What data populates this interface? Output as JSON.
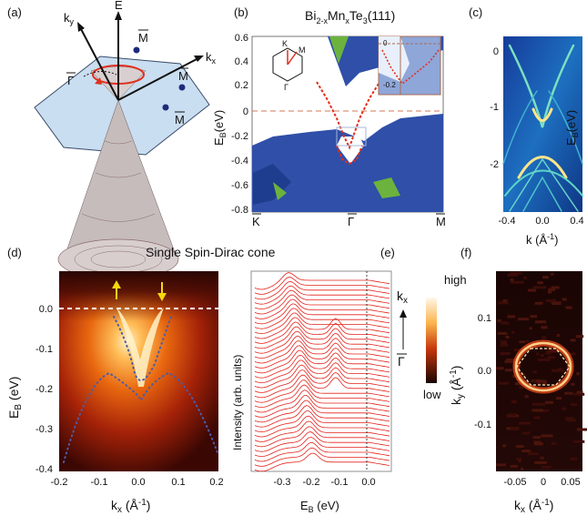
{
  "panels": {
    "a": {
      "label": "(a)",
      "axis_E": "E",
      "axis_ky": "k",
      "axis_ky_sub": "y",
      "axis_kx": "k",
      "axis_kx_sub": "x",
      "points": [
        "Γ",
        "M",
        "M",
        "M"
      ]
    },
    "b": {
      "label": "(b)",
      "title_parts": [
        "Bi",
        "2-x",
        "Mn",
        "x",
        "Te",
        "3",
        "(111)"
      ],
      "ylabel": "E",
      "ylabel_sub": "B",
      "ylabel_unit": "(eV)",
      "yticks": [
        "0.6",
        "0.4",
        "0.2",
        "0",
        "-0.2",
        "-0.4",
        "-0.6",
        "-0.8"
      ],
      "xticks": [
        "K",
        "Γ",
        "M"
      ],
      "inset_bz": [
        "K",
        "M",
        "Γ"
      ],
      "inset_zoom_ticks": [
        "0",
        "-0.2"
      ]
    },
    "c": {
      "label": "(c)",
      "ylabel": "E",
      "ylabel_sub": "B",
      "ylabel_unit": "(eV)",
      "yticks": [
        "0",
        "-1",
        "-2"
      ],
      "xticks": [
        "-0.4",
        "0.0",
        "0.4"
      ],
      "xlabel": "k (Å",
      "xlabel_sup": "-1",
      "xlabel_end": ")"
    },
    "d": {
      "label": "(d)",
      "title": "Single Spin-Dirac cone",
      "ylabel": "E",
      "ylabel_sub": "B",
      "ylabel_unit": " (eV)",
      "yticks": [
        "0.0",
        "-0.1",
        "-0.2",
        "-0.3",
        "-0.4"
      ],
      "xticks": [
        "-0.2",
        "-0.1",
        "0.0",
        "0.1",
        "0.2"
      ],
      "xlabel": "k",
      "xlabel_sub": "x",
      "xlabel_unit": " (Å",
      "xlabel_sup": "-1",
      "xlabel_end": ")"
    },
    "e": {
      "label": "(e)",
      "ylabel": "Intensity (arb. units)",
      "xticks": [
        "-0.3",
        "-0.2",
        "-0.1",
        "0.0"
      ],
      "xlabel": "E",
      "xlabel_sub": "B",
      "xlabel_unit": " (eV)",
      "arrow_top": "k",
      "arrow_top_sub": "x",
      "arrow_bottom": "Γ"
    },
    "f": {
      "label": "(f)",
      "ylabel": "k",
      "ylabel_sub": "y",
      "ylabel_unit": " (Å",
      "ylabel_sup": "-1",
      "ylabel_end": ")",
      "yticks": [
        "0.1",
        "0.0",
        "-0.1"
      ],
      "xticks": [
        "-0.05",
        "0",
        "0.05"
      ],
      "xlabel": "k",
      "xlabel_sub": "x",
      "xlabel_unit": " (Å",
      "xlabel_sup": "-1",
      "xlabel_end": ")",
      "colorbar_high": "high",
      "colorbar_low": "low"
    }
  },
  "colors": {
    "bulk_blue": "#2f4fa8",
    "gap_green": "#6cb33e",
    "dispersion_red": "#e0301e",
    "plane_blue": "#c9def0",
    "heat_dark": "#1a0a05",
    "heat_hot": "#ffd58a",
    "edc_red": "#e3221b",
    "arrow_yellow": "#f5d90a"
  }
}
